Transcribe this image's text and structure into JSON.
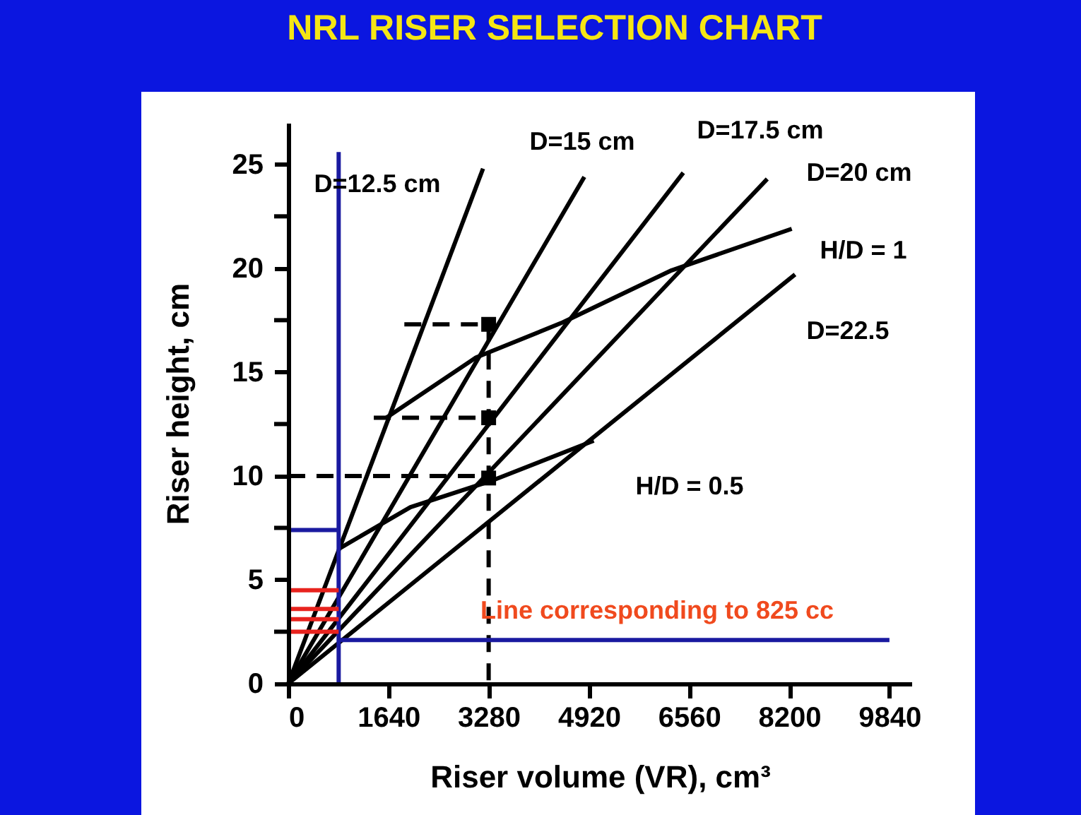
{
  "chart_data": {
    "type": "line",
    "title": "NRL RISER SELECTION CHART",
    "xlabel": "Riser volume (VR), cm³",
    "ylabel": "Riser height, cm",
    "xlim": [
      0,
      10200
    ],
    "ylim": [
      0,
      27
    ],
    "xticks": [
      0,
      1640,
      3280,
      4920,
      6560,
      8200,
      9840
    ],
    "yticks": [
      0,
      {
        "value": 2.5,
        "label": null
      },
      5,
      {
        "value": 7.5,
        "label": null
      },
      10,
      {
        "value": 12.5,
        "label": null
      },
      15,
      {
        "value": 17.5,
        "label": null
      },
      20,
      {
        "value": 22.5,
        "label": null
      },
      25
    ],
    "line_style": "solid",
    "marker": "none",
    "series": [
      {
        "color": "#000000",
        "x": [
          0,
          3188
        ],
        "values": [
          0,
          24.8
        ]
      },
      {
        "color": "#000000",
        "x": [
          0,
          4846
        ],
        "values": [
          0,
          24.4
        ]
      },
      {
        "color": "#000000",
        "x": [
          0,
          6466
        ],
        "values": [
          0,
          24.6
        ]
      },
      {
        "color": "#000000",
        "x": [
          0,
          7840
        ],
        "values": [
          0,
          24.3
        ]
      },
      {
        "color": "#000000",
        "x": [
          0,
          8295
        ],
        "values": [
          0,
          19.7
        ]
      },
      {
        "color": "#000000",
        "x": [
          1605,
          3072,
          4498,
          6274,
          8241
        ],
        "values": [
          12.8,
          15.7,
          17.4,
          19.9,
          21.9
        ]
      },
      {
        "color": "#000000",
        "x": [
          833,
          2000,
          3357,
          5000
        ],
        "values": [
          6.5,
          8.5,
          9.8,
          11.7
        ]
      },
      {
        "color": "#000000",
        "line_style": "dashed",
        "x": [
          1900,
          3280
        ],
        "values": [
          17.3,
          17.3
        ]
      },
      {
        "color": "#000000",
        "line_style": "dashed",
        "x": [
          1400,
          3280
        ],
        "values": [
          12.8,
          12.8
        ]
      },
      {
        "color": "#000000",
        "line_style": "dashed",
        "x": [
          0,
          3280
        ],
        "values": [
          10,
          10
        ]
      },
      {
        "color": "#000000",
        "line_style": "dashed",
        "x": [
          3280,
          3280
        ],
        "values": [
          17.3,
          0
        ]
      },
      {
        "type": "scatter",
        "marker": "square",
        "color": "#000000",
        "x": [
          3280,
          3280,
          3280
        ],
        "values": [
          17.3,
          12.8,
          9.9
        ]
      },
      {
        "color": "#1a1aa0",
        "x": [
          825,
          825
        ],
        "values": [
          0,
          25.6
        ]
      },
      {
        "color": "#1a1aa0",
        "x": [
          0,
          825
        ],
        "values": [
          7.4,
          7.4
        ]
      },
      {
        "color": "#1a1aa0",
        "x": [
          9840,
          825
        ],
        "values": [
          2.1,
          2.1
        ]
      },
      {
        "color": "#e8231e",
        "x": [
          0,
          825
        ],
        "values": [
          4.5,
          4.5
        ]
      },
      {
        "color": "#e8231e",
        "x": [
          0,
          825
        ],
        "values": [
          3.6,
          3.6
        ]
      },
      {
        "color": "#e8231e",
        "x": [
          0,
          825
        ],
        "values": [
          3.1,
          3.1
        ]
      },
      {
        "color": "#e8231e",
        "x": [
          0,
          825
        ],
        "values": [
          2.5,
          2.5
        ]
      }
    ],
    "annotations": [
      "D=12.5 cm",
      "D=15 cm",
      "D=17.5 cm",
      "D=20 cm",
      "H/D = 1",
      "D=22.5",
      "H/D = 0.5",
      "Line corresponding to 825 cc"
    ]
  }
}
